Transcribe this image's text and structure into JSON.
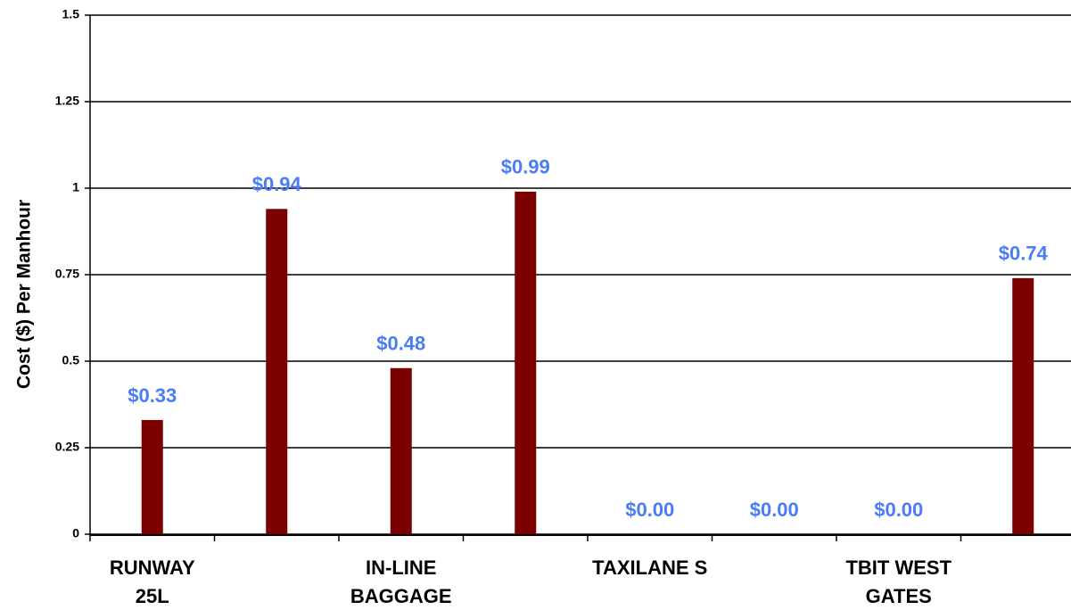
{
  "chart_data": {
    "type": "bar",
    "y_label": "Cost ($) Per Manhour",
    "categories": [
      "RUNWAY\n25L",
      null,
      "IN-LINE\nBAGGAGE",
      null,
      "TAXILANE S",
      null,
      "TBIT WEST\nGATES",
      null
    ],
    "values": [
      0.33,
      0.94,
      0.48,
      0.99,
      0,
      0,
      0,
      0.74
    ],
    "value_labels": [
      "$0.33",
      "$0.94",
      "$0.48",
      "$0.99",
      "$0.00",
      "$0.00",
      "$0.00",
      "$0.74"
    ],
    "color": "#7b0000",
    "label_color": "#4a7cf7",
    "ylim": [
      0,
      1.5
    ],
    "yticks": [
      0,
      0.25,
      0.5,
      0.75,
      1,
      1.25,
      1.5
    ],
    "grid": true
  }
}
